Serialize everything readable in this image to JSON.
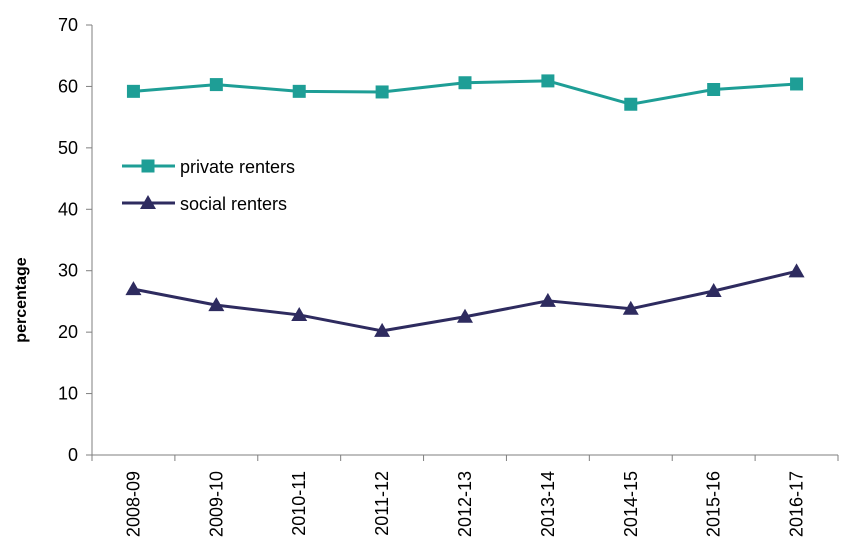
{
  "chart_data": {
    "type": "line",
    "title": "",
    "xlabel": "",
    "ylabel": "percentage",
    "categories": [
      "2008-09",
      "2009-10",
      "2010-11",
      "2011-12",
      "2012-13",
      "2013-14",
      "2014-15",
      "2015-16",
      "2016-17"
    ],
    "ylim": [
      0,
      70
    ],
    "yticks": [
      0,
      10,
      20,
      30,
      40,
      50,
      60,
      70
    ],
    "grid": false,
    "legend_position": "left",
    "series": [
      {
        "name": "private renters",
        "marker": "square",
        "color": "#1e9e96",
        "values": [
          59.2,
          60.3,
          59.2,
          59.1,
          60.6,
          60.9,
          57.1,
          59.5,
          60.4
        ]
      },
      {
        "name": "social renters",
        "marker": "triangle",
        "color": "#2e2b5f",
        "values": [
          27.0,
          24.4,
          22.8,
          20.2,
          22.5,
          25.1,
          23.8,
          26.7,
          29.9
        ]
      }
    ]
  }
}
